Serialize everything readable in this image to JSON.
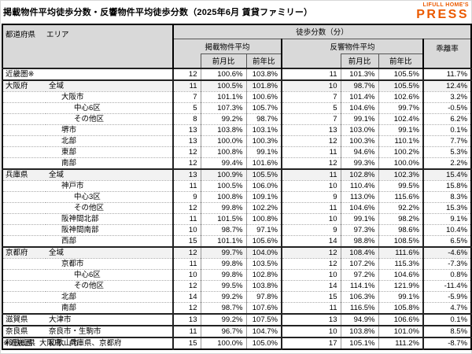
{
  "page": {
    "title": "掲載物件平均徒歩分数・反響物件平均徒歩分数（2025年6月 賃貸ファミリー）",
    "footnote": "※近畿圏：大阪府、兵庫県、京都府"
  },
  "logo": {
    "line1": "LIFULL HOME'S",
    "line2": "PRESS",
    "color": "#EB5A00"
  },
  "table": {
    "header": {
      "prefecture": "都道府県",
      "area": "エリア",
      "group": "徒歩分数（分）",
      "listed_avg": "掲載物件平均",
      "response_avg": "反響物件平均",
      "mom": "前月比",
      "yoy": "前年比",
      "deviation": "乖離率"
    },
    "colors": {
      "header_bg": "#d9d9d9",
      "shaded_row_bg": "#f2f2f2",
      "logo_orange": "#EB5A00"
    }
  },
  "chart_data": {
    "type": "table",
    "title": "掲載物件平均徒歩分数・反響物件平均徒歩分数（2025年6月 賃貸ファミリー）",
    "columns": [
      "都道府県",
      "エリア",
      "掲載物件平均",
      "掲載前月比",
      "掲載前年比",
      "反響物件平均",
      "反響前月比",
      "反響前年比",
      "乖離率"
    ],
    "rows": [
      {
        "pref": "近畿圏※",
        "area": "",
        "indent": 0,
        "shaded": false,
        "group_start": true,
        "values": [
          "12",
          "100.6%",
          "103.8%",
          "11",
          "101.3%",
          "105.5%",
          "11.7%"
        ]
      },
      {
        "pref": "大阪府",
        "area": "全域",
        "indent": 0,
        "shaded": true,
        "group_start": true,
        "values": [
          "11",
          "100.5%",
          "101.8%",
          "10",
          "98.7%",
          "105.5%",
          "12.4%"
        ]
      },
      {
        "pref": "",
        "area": "大阪市",
        "indent": 1,
        "shaded": false,
        "group_start": false,
        "values": [
          "7",
          "101.1%",
          "100.6%",
          "7",
          "101.4%",
          "102.6%",
          "3.2%"
        ]
      },
      {
        "pref": "",
        "area": "中心6区",
        "indent": 2,
        "shaded": false,
        "group_start": false,
        "values": [
          "5",
          "107.3%",
          "105.7%",
          "5",
          "104.6%",
          "99.7%",
          "-0.5%"
        ]
      },
      {
        "pref": "",
        "area": "その他区",
        "indent": 2,
        "shaded": false,
        "group_start": false,
        "values": [
          "8",
          "99.2%",
          "98.7%",
          "7",
          "99.1%",
          "102.4%",
          "6.2%"
        ]
      },
      {
        "pref": "",
        "area": "堺市",
        "indent": 1,
        "shaded": false,
        "group_start": false,
        "values": [
          "13",
          "103.8%",
          "103.1%",
          "13",
          "103.0%",
          "99.1%",
          "0.1%"
        ]
      },
      {
        "pref": "",
        "area": "北部",
        "indent": 1,
        "shaded": false,
        "group_start": false,
        "values": [
          "13",
          "100.0%",
          "100.3%",
          "12",
          "100.3%",
          "110.1%",
          "7.7%"
        ]
      },
      {
        "pref": "",
        "area": "東部",
        "indent": 1,
        "shaded": false,
        "group_start": false,
        "values": [
          "12",
          "100.8%",
          "99.1%",
          "11",
          "94.6%",
          "100.2%",
          "5.3%"
        ]
      },
      {
        "pref": "",
        "area": "南部",
        "indent": 1,
        "shaded": false,
        "group_start": false,
        "values": [
          "12",
          "99.4%",
          "101.6%",
          "12",
          "99.3%",
          "100.0%",
          "2.2%"
        ]
      },
      {
        "pref": "兵庫県",
        "area": "全域",
        "indent": 0,
        "shaded": true,
        "group_start": true,
        "values": [
          "13",
          "100.9%",
          "105.5%",
          "11",
          "102.8%",
          "102.3%",
          "15.4%"
        ]
      },
      {
        "pref": "",
        "area": "神戸市",
        "indent": 1,
        "shaded": false,
        "group_start": false,
        "values": [
          "11",
          "100.5%",
          "106.0%",
          "10",
          "110.4%",
          "99.5%",
          "15.8%"
        ]
      },
      {
        "pref": "",
        "area": "中心3区",
        "indent": 2,
        "shaded": false,
        "group_start": false,
        "values": [
          "9",
          "100.8%",
          "109.1%",
          "9",
          "113.0%",
          "115.6%",
          "8.3%"
        ]
      },
      {
        "pref": "",
        "area": "その他区",
        "indent": 2,
        "shaded": false,
        "group_start": false,
        "values": [
          "12",
          "99.8%",
          "102.2%",
          "11",
          "104.6%",
          "92.2%",
          "15.3%"
        ]
      },
      {
        "pref": "",
        "area": "阪神間北部",
        "indent": 1,
        "shaded": false,
        "group_start": false,
        "values": [
          "11",
          "101.5%",
          "100.8%",
          "10",
          "99.1%",
          "98.2%",
          "9.1%"
        ]
      },
      {
        "pref": "",
        "area": "阪神間南部",
        "indent": 1,
        "shaded": false,
        "group_start": false,
        "values": [
          "10",
          "98.7%",
          "97.1%",
          "9",
          "97.3%",
          "98.6%",
          "10.4%"
        ]
      },
      {
        "pref": "",
        "area": "西部",
        "indent": 1,
        "shaded": false,
        "group_start": false,
        "values": [
          "15",
          "101.1%",
          "105.6%",
          "14",
          "98.8%",
          "108.5%",
          "6.5%"
        ]
      },
      {
        "pref": "京都府",
        "area": "全域",
        "indent": 0,
        "shaded": true,
        "group_start": true,
        "values": [
          "12",
          "99.7%",
          "104.0%",
          "12",
          "108.4%",
          "111.6%",
          "-4.6%"
        ]
      },
      {
        "pref": "",
        "area": "京都市",
        "indent": 1,
        "shaded": false,
        "group_start": false,
        "values": [
          "11",
          "99.8%",
          "103.5%",
          "12",
          "107.2%",
          "115.3%",
          "-7.3%"
        ]
      },
      {
        "pref": "",
        "area": "中心6区",
        "indent": 2,
        "shaded": false,
        "group_start": false,
        "values": [
          "10",
          "99.8%",
          "102.8%",
          "10",
          "97.2%",
          "104.6%",
          "0.8%"
        ]
      },
      {
        "pref": "",
        "area": "その他区",
        "indent": 2,
        "shaded": false,
        "group_start": false,
        "values": [
          "12",
          "99.5%",
          "103.8%",
          "14",
          "114.1%",
          "121.9%",
          "-11.4%"
        ]
      },
      {
        "pref": "",
        "area": "北部",
        "indent": 1,
        "shaded": false,
        "group_start": false,
        "values": [
          "14",
          "99.2%",
          "97.8%",
          "15",
          "106.3%",
          "99.1%",
          "-5.9%"
        ]
      },
      {
        "pref": "",
        "area": "南部",
        "indent": 1,
        "shaded": false,
        "group_start": false,
        "values": [
          "12",
          "98.7%",
          "107.6%",
          "11",
          "116.5%",
          "105.8%",
          "4.7%"
        ]
      },
      {
        "pref": "滋賀県",
        "area": "大津市",
        "indent": 0,
        "shaded": false,
        "group_start": true,
        "values": [
          "13",
          "99.2%",
          "107.5%",
          "13",
          "94.9%",
          "106.6%",
          "0.1%"
        ]
      },
      {
        "pref": "奈良県",
        "area": "奈良市・生駒市",
        "indent": 0,
        "shaded": false,
        "group_start": true,
        "values": [
          "11",
          "96.7%",
          "104.7%",
          "10",
          "103.8%",
          "101.0%",
          "8.5%"
        ]
      },
      {
        "pref": "和歌山県",
        "area": "和歌山市",
        "indent": 0,
        "shaded": false,
        "group_start": true,
        "values": [
          "15",
          "100.0%",
          "105.0%",
          "17",
          "105.1%",
          "111.2%",
          "-8.7%"
        ]
      }
    ]
  }
}
